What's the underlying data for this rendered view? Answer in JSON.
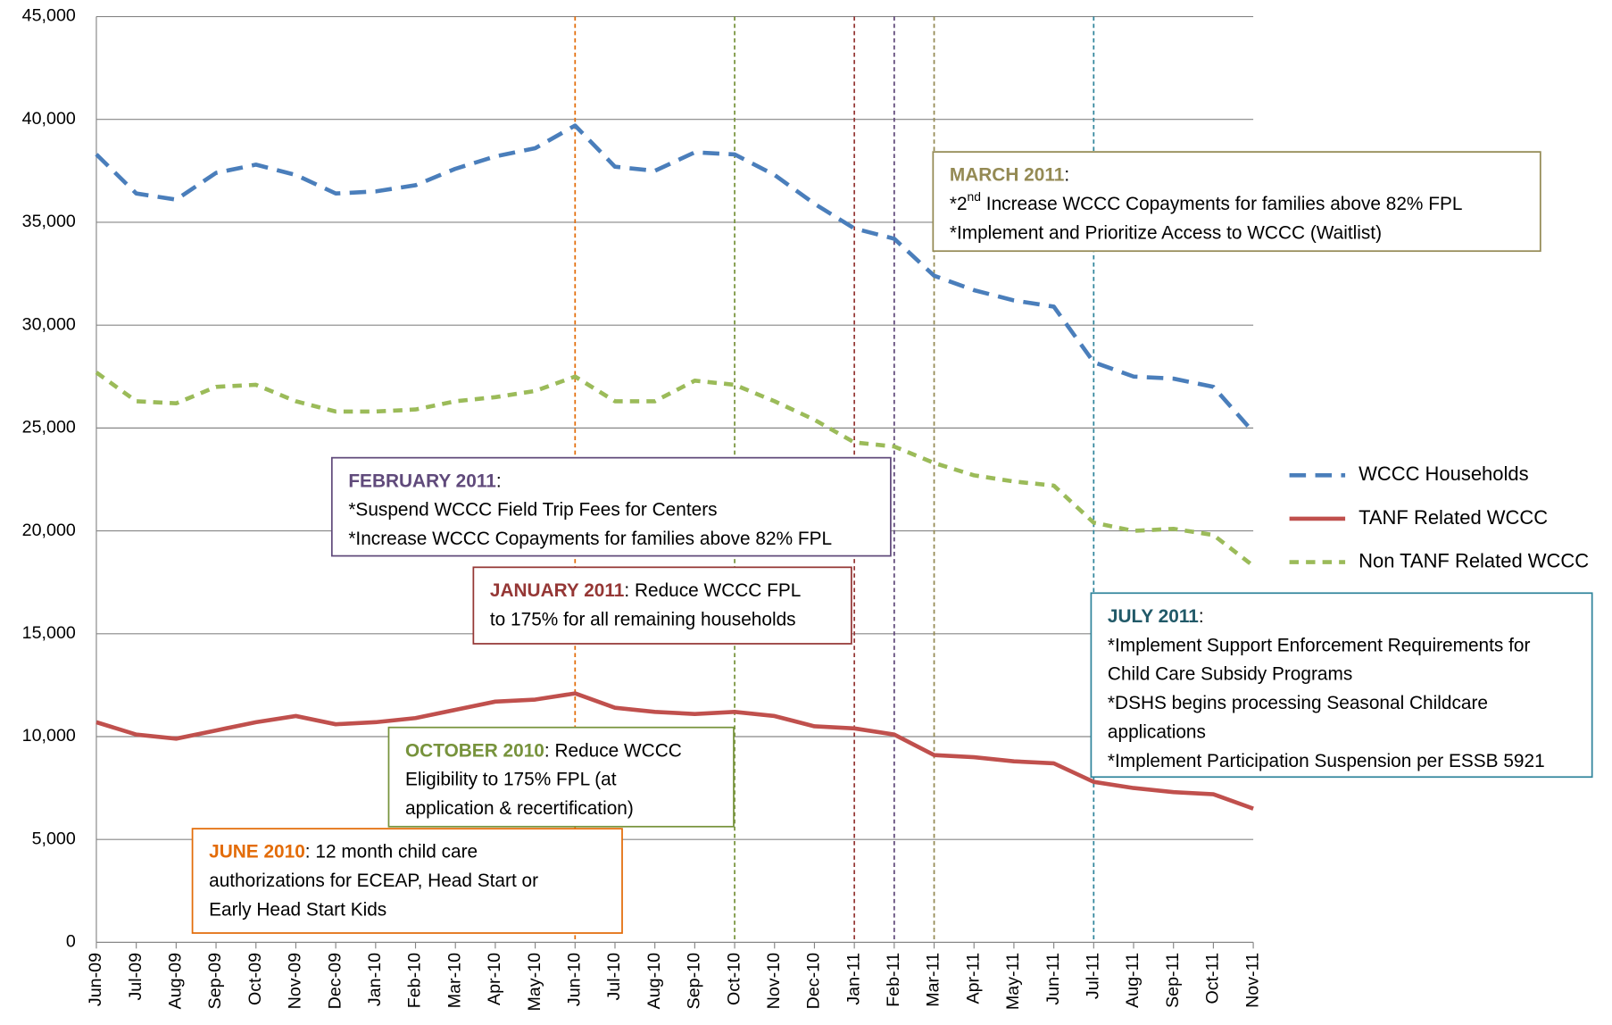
{
  "chart_data": {
    "type": "line",
    "categories": [
      "Jun-09",
      "Jul-09",
      "Aug-09",
      "Sep-09",
      "Oct-09",
      "Nov-09",
      "Dec-09",
      "Jan-10",
      "Feb-10",
      "Mar-10",
      "Apr-10",
      "May-10",
      "Jun-10",
      "Jul-10",
      "Aug-10",
      "Sep-10",
      "Oct-10",
      "Nov-10",
      "Dec-10",
      "Jan-11",
      "Feb-11",
      "Mar-11",
      "Apr-11",
      "May-11",
      "Jun-11",
      "Jul-11",
      "Aug-11",
      "Sep-11",
      "Oct-11",
      "Nov-11"
    ],
    "series": [
      {
        "name": "WCCC Households",
        "color": "#4a7ebb",
        "style": "dashed",
        "values": [
          38300,
          36400,
          36100,
          37400,
          37800,
          37300,
          36400,
          36500,
          36800,
          37600,
          38200,
          38600,
          39700,
          37700,
          37500,
          38400,
          38300,
          37300,
          35900,
          34700,
          34200,
          32400,
          31700,
          31200,
          30900,
          28200,
          27500,
          27400,
          27000,
          24800
        ]
      },
      {
        "name": "TANF Related WCCC",
        "color": "#c0504d",
        "style": "solid",
        "values": [
          10700,
          10100,
          9900,
          10300,
          10700,
          11000,
          10600,
          10700,
          10900,
          11300,
          11700,
          11800,
          12100,
          11400,
          11200,
          11100,
          11200,
          11000,
          10500,
          10400,
          10100,
          9100,
          9000,
          8800,
          8700,
          7800,
          7500,
          7300,
          7200,
          6500
        ]
      },
      {
        "name": "Non TANF Related WCCC",
        "color": "#9bbb59",
        "style": "dotted",
        "values": [
          27700,
          26300,
          26200,
          27000,
          27100,
          26300,
          25800,
          25800,
          25900,
          26300,
          26500,
          26800,
          27500,
          26300,
          26300,
          27300,
          27100,
          26300,
          25400,
          24300,
          24100,
          23300,
          22700,
          22400,
          22200,
          20400,
          20000,
          20100,
          19800,
          18300
        ]
      }
    ],
    "ylim": [
      0,
      45000
    ],
    "yticks": [
      0,
      {
        "value": 5000,
        "label": "5,000"
      },
      {
        "value": 10000,
        "label": "10,000"
      },
      {
        "value": 15000,
        "label": "15,000"
      },
      {
        "value": 20000,
        "label": "20,000"
      },
      {
        "value": 25000,
        "label": "25,000"
      },
      {
        "value": 30000,
        "label": "30,000"
      },
      {
        "value": 35000,
        "label": "35,000"
      },
      {
        "value": 40000,
        "label": "40,000"
      },
      {
        "value": 45000,
        "label": "45,000"
      }
    ],
    "grid": true,
    "legend": "right",
    "annotations": [
      {
        "x": "Mar-11",
        "color": "#948a54",
        "title": "MARCH 2011",
        "lines": [
          ":",
          [
            "*2",
            "nd",
            " Increase WCCC Copayments for families above 82% FPL"
          ],
          "*Implement and Prioritize Access to WCCC (Waitlist)"
        ]
      },
      {
        "x": "Feb-11",
        "color": "#604a7b",
        "title": "FEBRUARY 2011",
        "lines": [
          ":",
          "*Suspend WCCC Field Trip Fees for Centers",
          "*Increase WCCC Copayments for families above 82% FPL"
        ]
      },
      {
        "x": "Jan-11",
        "color": "#953735",
        "title": "JANUARY 2011",
        "lines": [
          ":  Reduce WCCC FPL",
          "to 175% for all remaining households"
        ]
      },
      {
        "x": "Oct-10",
        "color": "#77933c",
        "title": "OCTOBER 2010",
        "lines": [
          ":  Reduce WCCC",
          "Eligibility to 175% FPL (at",
          "application & recertification)"
        ]
      },
      {
        "x": "Jun-10",
        "color": "#e36c09",
        "title": "JUNE 2010",
        "lines": [
          ":  12 month child care",
          "authorizations for ECEAP, Head Start or",
          "Early Head Start Kids"
        ]
      },
      {
        "x": "Jul-11",
        "color": "#31859c",
        "title": "JULY 2011",
        "lines": [
          ":",
          "*Implement Support Enforcement Requirements for",
          "Child Care  Subsidy Programs",
          "*DSHS begins processing  Seasonal Childcare",
          "applications",
          "*Implement Participation Suspension per ESSB 5921"
        ]
      }
    ]
  }
}
